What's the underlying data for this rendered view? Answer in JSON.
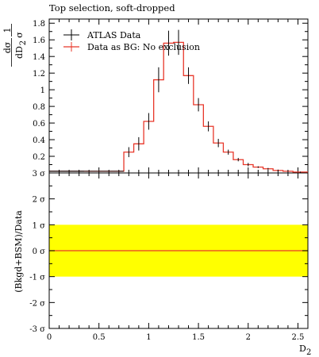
{
  "colors": {
    "data": "#000000",
    "mc": "#e8372a",
    "band": "#ffff00",
    "axis": "#000000"
  },
  "chart_data": [
    {
      "type": "line",
      "panel": "main",
      "title": "Top selection, soft-dropped",
      "ylabel_num_left": "1",
      "ylabel_den_left": "σ",
      "ylabel_num_right": "dσ",
      "ylabel_den_right": "dD",
      "ylabel_den_sub": "2",
      "xlim": [
        0,
        2.6
      ],
      "ylim": [
        0,
        1.85
      ],
      "yticks": [
        {
          "v": 0.2,
          "label": "0.2"
        },
        {
          "v": 0.4,
          "label": "0.4"
        },
        {
          "v": 0.6,
          "label": "0.6"
        },
        {
          "v": 0.8,
          "label": "0.8"
        },
        {
          "v": 1.0,
          "label": "1"
        },
        {
          "v": 1.2,
          "label": "1.2"
        },
        {
          "v": 1.4,
          "label": "1.4"
        },
        {
          "v": 1.6,
          "label": "1.6"
        },
        {
          "v": 1.8,
          "label": "1.8"
        }
      ],
      "legend_position": "top-left",
      "series": [
        {
          "name": "ATLAS Data",
          "style": "points",
          "x": [
            0.175,
            0.375,
            0.8,
            0.9,
            1.0,
            1.1,
            1.2,
            1.3,
            1.4,
            1.5,
            1.6,
            1.7,
            1.8,
            1.9,
            2.0,
            2.1,
            2.2,
            2.3,
            2.4,
            2.525
          ],
          "y": [
            0.02,
            0.02,
            0.25,
            0.35,
            0.62,
            1.12,
            1.56,
            1.57,
            1.17,
            0.82,
            0.56,
            0.36,
            0.25,
            0.16,
            0.1,
            0.07,
            0.05,
            0.03,
            0.02,
            0.01
          ],
          "yerr": [
            0.003,
            0.003,
            0.06,
            0.08,
            0.1,
            0.15,
            0.15,
            0.15,
            0.1,
            0.08,
            0.06,
            0.05,
            0.03,
            0.02,
            0.02,
            0.01,
            0.01,
            0.01,
            0.005,
            0.005
          ],
          "xerr": [
            0.175,
            0.375,
            0.05,
            0.05,
            0.05,
            0.05,
            0.05,
            0.05,
            0.05,
            0.05,
            0.05,
            0.05,
            0.05,
            0.05,
            0.05,
            0.05,
            0.05,
            0.05,
            0.05,
            0.075
          ]
        },
        {
          "name": "Data as BG: No exclusion",
          "style": "step",
          "edges": [
            0,
            0.75,
            0.85,
            0.95,
            1.05,
            1.15,
            1.25,
            1.35,
            1.45,
            1.55,
            1.65,
            1.75,
            1.85,
            1.95,
            2.05,
            2.15,
            2.25,
            2.35,
            2.45,
            2.6
          ],
          "values": [
            0.02,
            0.25,
            0.35,
            0.62,
            1.12,
            1.56,
            1.57,
            1.17,
            0.82,
            0.56,
            0.36,
            0.25,
            0.16,
            0.1,
            0.07,
            0.05,
            0.03,
            0.02,
            0.01
          ]
        }
      ]
    },
    {
      "type": "line",
      "panel": "ratio",
      "ylabel": "(Bkgd+BSM)/Data",
      "xlabel": "D",
      "xlabel_sub": "2",
      "xlim": [
        0,
        2.6
      ],
      "ylim": [
        -3,
        3
      ],
      "xticks": [
        {
          "v": 0,
          "label": "0"
        },
        {
          "v": 0.5,
          "label": "0.5"
        },
        {
          "v": 1.0,
          "label": "1"
        },
        {
          "v": 1.5,
          "label": "1.5"
        },
        {
          "v": 2.0,
          "label": "2"
        },
        {
          "v": 2.5,
          "label": "2.5"
        }
      ],
      "yticks": [
        {
          "v": 3,
          "label": "3 σ"
        },
        {
          "v": 2,
          "label": "2 σ"
        },
        {
          "v": 1,
          "label": "1 σ"
        },
        {
          "v": 0,
          "label": "0 σ"
        },
        {
          "v": -1,
          "label": "-1 σ"
        },
        {
          "v": -2,
          "label": "-2 σ"
        },
        {
          "v": -3,
          "label": "-3 σ"
        }
      ],
      "band": [
        -1,
        1
      ],
      "line_y": 0
    }
  ]
}
